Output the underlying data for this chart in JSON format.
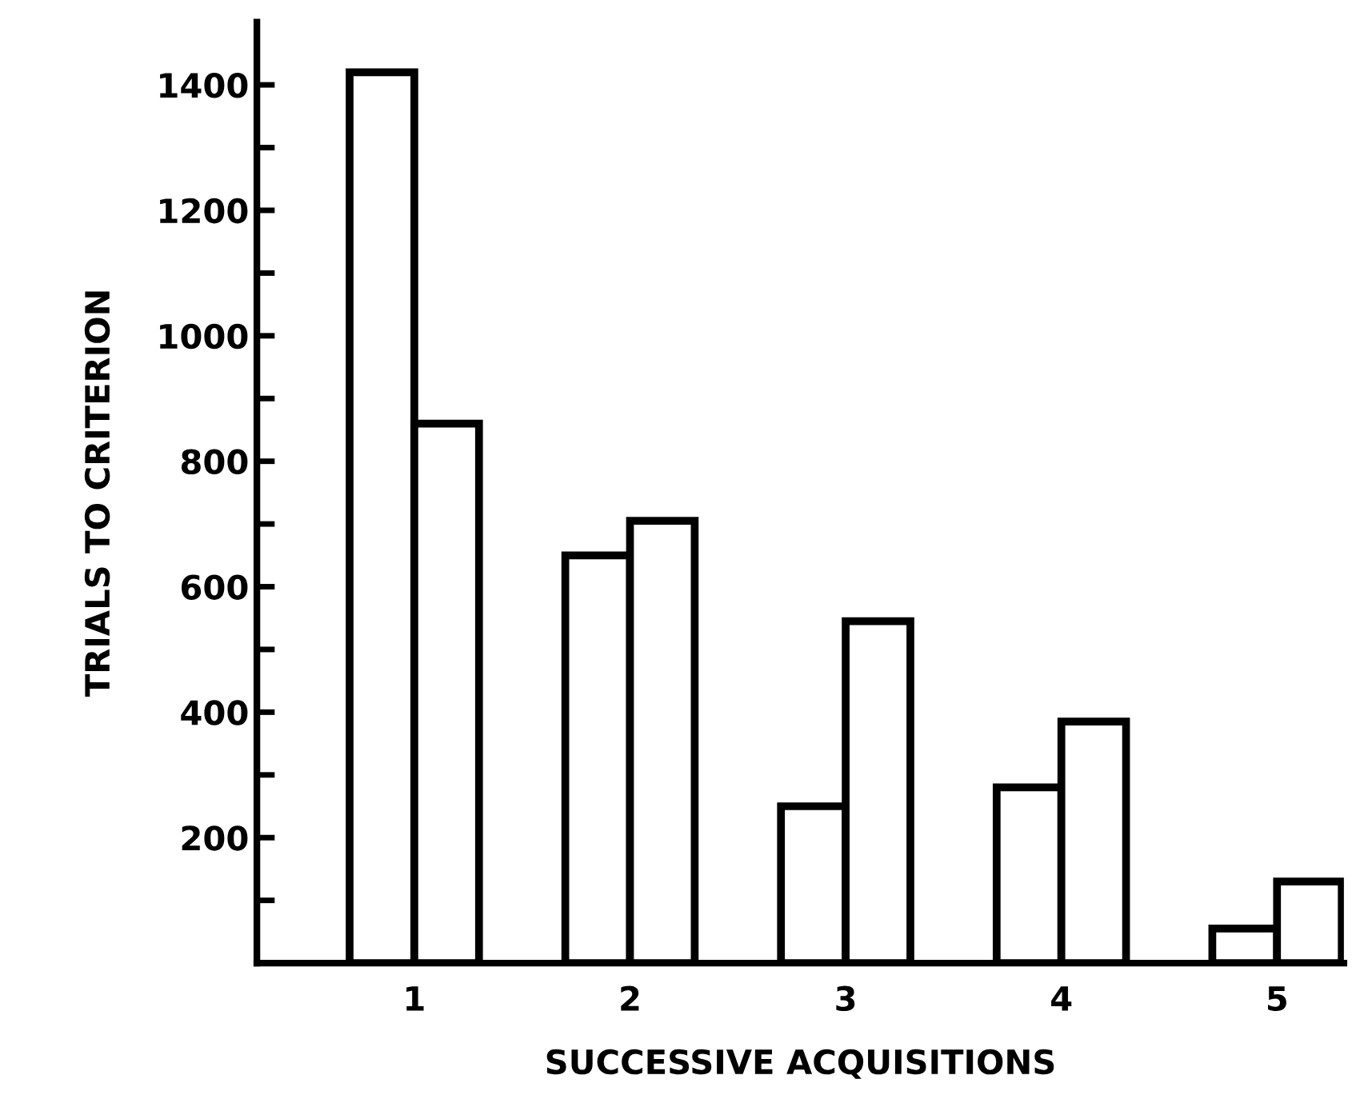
{
  "chart_data": {
    "type": "bar",
    "xlabel": "SUCCESSIVE ACQUISITIONS",
    "ylabel": "TRIALS TO CRITERION",
    "categories": [
      "1",
      "2",
      "3",
      "4",
      "5"
    ],
    "series": [
      {
        "color": "#ffffff",
        "values": [
          1420,
          650,
          250,
          280,
          55
        ]
      },
      {
        "color": "#ffffff",
        "values": [
          860,
          705,
          545,
          385,
          130
        ]
      }
    ],
    "ylim": [
      0,
      1500
    ],
    "yticks": [
      {
        "value": 100,
        "label": null
      },
      200,
      {
        "value": 300,
        "label": null
      },
      400,
      {
        "value": 500,
        "label": null
      },
      600,
      {
        "value": 700,
        "label": null
      },
      800,
      {
        "value": 900,
        "label": null
      },
      1000,
      {
        "value": 1100,
        "label": null
      },
      1200,
      {
        "value": 1300,
        "label": null
      },
      1400
    ],
    "grid": false,
    "legend": false
  }
}
